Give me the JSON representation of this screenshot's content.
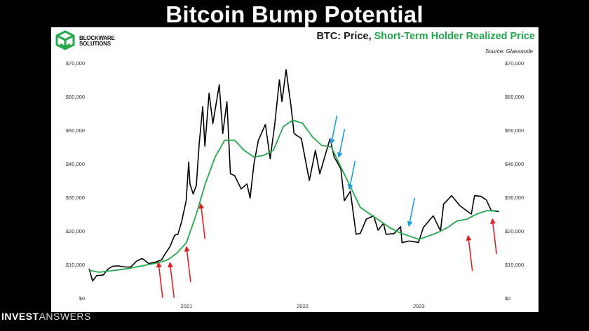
{
  "headline": "Bitcoin Bump Potential",
  "logo": {
    "line1": "BLOCKWARE",
    "line2": "SOLUTIONS",
    "color": "#22a84a"
  },
  "title": {
    "prefix": "BTC: Price, ",
    "highlight": "Short-Term Holder Realized Price"
  },
  "source": "Source: Glassnode",
  "footer": {
    "bold": "INVEST",
    "light": "ANSWERS"
  },
  "chart_data": {
    "type": "line",
    "title": "BTC: Price, Short-Term Holder Realized Price",
    "x_type": "date",
    "xlim": [
      "2020-03-01",
      "2023-09-15"
    ],
    "x_ticks": [
      {
        "date": "2021-01-01",
        "label": "2021"
      },
      {
        "date": "2022-01-01",
        "label": "2022"
      },
      {
        "date": "2023-01-01",
        "label": "2023"
      }
    ],
    "ylim": [
      0,
      70000
    ],
    "y_ticks": [
      0,
      10000,
      20000,
      30000,
      40000,
      50000,
      60000,
      70000
    ],
    "y_tick_labels": [
      "$0",
      "$10,000",
      "$20,000",
      "$30,000",
      "$40,000",
      "$50,000",
      "$60,000",
      "$70,000"
    ],
    "y_axis_both_sides": true,
    "grid": false,
    "series": [
      {
        "name": "Price",
        "color": "#000000",
        "points": [
          [
            "2020-03-01",
            8800
          ],
          [
            "2020-03-12",
            5100
          ],
          [
            "2020-03-25",
            6700
          ],
          [
            "2020-04-15",
            6900
          ],
          [
            "2020-04-30",
            8700
          ],
          [
            "2020-05-15",
            9500
          ],
          [
            "2020-06-01",
            9600
          ],
          [
            "2020-06-20",
            9300
          ],
          [
            "2020-07-10",
            9250
          ],
          [
            "2020-07-28",
            11000
          ],
          [
            "2020-08-15",
            11800
          ],
          [
            "2020-09-05",
            10300
          ],
          [
            "2020-09-25",
            10700
          ],
          [
            "2020-10-15",
            11400
          ],
          [
            "2020-10-25",
            13000
          ],
          [
            "2020-11-10",
            15300
          ],
          [
            "2020-11-25",
            18700
          ],
          [
            "2020-12-05",
            19000
          ],
          [
            "2020-12-17",
            22800
          ],
          [
            "2020-12-31",
            29000
          ],
          [
            "2021-01-08",
            40500
          ],
          [
            "2021-01-12",
            34000
          ],
          [
            "2021-01-22",
            31000
          ],
          [
            "2021-02-01",
            33500
          ],
          [
            "2021-02-10",
            46000
          ],
          [
            "2021-02-21",
            57000
          ],
          [
            "2021-02-28",
            45200
          ],
          [
            "2021-03-13",
            61000
          ],
          [
            "2021-03-25",
            52000
          ],
          [
            "2021-04-14",
            63500
          ],
          [
            "2021-04-25",
            49000
          ],
          [
            "2021-05-08",
            58500
          ],
          [
            "2021-05-19",
            37000
          ],
          [
            "2021-06-01",
            36500
          ],
          [
            "2021-06-22",
            32500
          ],
          [
            "2021-07-10",
            34000
          ],
          [
            "2021-07-20",
            29800
          ],
          [
            "2021-08-01",
            40000
          ],
          [
            "2021-08-15",
            47000
          ],
          [
            "2021-09-06",
            51700
          ],
          [
            "2021-09-21",
            41500
          ],
          [
            "2021-10-05",
            51500
          ],
          [
            "2021-10-20",
            65000
          ],
          [
            "2021-10-28",
            58500
          ],
          [
            "2021-11-10",
            68000
          ],
          [
            "2021-11-25",
            57500
          ],
          [
            "2021-12-05",
            49000
          ],
          [
            "2021-12-28",
            47500
          ],
          [
            "2022-01-05",
            43500
          ],
          [
            "2022-01-22",
            35000
          ],
          [
            "2022-02-10",
            44000
          ],
          [
            "2022-02-24",
            37000
          ],
          [
            "2022-03-28",
            47500
          ],
          [
            "2022-04-10",
            42000
          ],
          [
            "2022-05-01",
            38500
          ],
          [
            "2022-05-12",
            29000
          ],
          [
            "2022-05-31",
            31800
          ],
          [
            "2022-06-13",
            22500
          ],
          [
            "2022-06-18",
            19000
          ],
          [
            "2022-07-01",
            19300
          ],
          [
            "2022-07-20",
            23500
          ],
          [
            "2022-08-12",
            24500
          ],
          [
            "2022-08-26",
            20200
          ],
          [
            "2022-09-12",
            22300
          ],
          [
            "2022-09-20",
            19000
          ],
          [
            "2022-10-15",
            19200
          ],
          [
            "2022-11-05",
            21300
          ],
          [
            "2022-11-09",
            16500
          ],
          [
            "2022-12-01",
            17000
          ],
          [
            "2022-12-31",
            16600
          ],
          [
            "2023-01-15",
            21000
          ],
          [
            "2023-02-15",
            24500
          ],
          [
            "2023-03-10",
            20000
          ],
          [
            "2023-03-20",
            28000
          ],
          [
            "2023-04-14",
            30500
          ],
          [
            "2023-05-10",
            27500
          ],
          [
            "2023-06-15",
            25000
          ],
          [
            "2023-06-25",
            30500
          ],
          [
            "2023-07-15",
            30300
          ],
          [
            "2023-08-01",
            29200
          ],
          [
            "2023-08-17",
            26000
          ],
          [
            "2023-09-10",
            25800
          ]
        ]
      },
      {
        "name": "Short-Term Holder Realized Price",
        "color": "#22a84a",
        "points": [
          [
            "2020-03-01",
            8300
          ],
          [
            "2020-04-01",
            7700
          ],
          [
            "2020-05-15",
            8200
          ],
          [
            "2020-07-01",
            8800
          ],
          [
            "2020-08-15",
            9600
          ],
          [
            "2020-10-01",
            10500
          ],
          [
            "2020-11-01",
            11300
          ],
          [
            "2020-12-01",
            13300
          ],
          [
            "2021-01-01",
            16500
          ],
          [
            "2021-02-01",
            25000
          ],
          [
            "2021-03-01",
            34000
          ],
          [
            "2021-04-01",
            42000
          ],
          [
            "2021-05-01",
            47000
          ],
          [
            "2021-06-01",
            47000
          ],
          [
            "2021-07-01",
            44000
          ],
          [
            "2021-08-01",
            42000
          ],
          [
            "2021-09-01",
            42500
          ],
          [
            "2021-10-01",
            44000
          ],
          [
            "2021-11-01",
            51000
          ],
          [
            "2021-12-01",
            53000
          ],
          [
            "2022-01-01",
            52000
          ],
          [
            "2022-02-01",
            48000
          ],
          [
            "2022-03-01",
            45500
          ],
          [
            "2022-04-01",
            45000
          ],
          [
            "2022-05-01",
            39000
          ],
          [
            "2022-06-01",
            33000
          ],
          [
            "2022-07-01",
            27000
          ],
          [
            "2022-08-01",
            25000
          ],
          [
            "2022-09-01",
            23000
          ],
          [
            "2022-10-01",
            21000
          ],
          [
            "2022-11-01",
            19500
          ],
          [
            "2022-12-01",
            18500
          ],
          [
            "2023-01-01",
            17500
          ],
          [
            "2023-02-01",
            18500
          ],
          [
            "2023-03-01",
            19500
          ],
          [
            "2023-04-01",
            21000
          ],
          [
            "2023-05-01",
            23000
          ],
          [
            "2023-06-01",
            23500
          ],
          [
            "2023-07-01",
            25000
          ],
          [
            "2023-08-01",
            26000
          ],
          [
            "2023-09-01",
            26000
          ]
        ]
      }
    ],
    "arrows": [
      {
        "color": "#e02020",
        "direction": "up",
        "at": [
          "2020-10-05",
          10500
        ]
      },
      {
        "color": "#e02020",
        "direction": "up",
        "at": [
          "2020-11-10",
          10500
        ]
      },
      {
        "color": "#e02020",
        "direction": "up",
        "at": [
          "2021-01-01",
          15200
        ]
      },
      {
        "color": "#e02020",
        "direction": "up",
        "at": [
          "2021-02-15",
          28000
        ]
      },
      {
        "color": "#1e9be0",
        "direction": "down",
        "at": [
          "2022-04-01",
          46000
        ]
      },
      {
        "color": "#1e9be0",
        "direction": "down",
        "at": [
          "2022-04-25",
          42000
        ]
      },
      {
        "color": "#1e9be0",
        "direction": "down",
        "at": [
          "2022-05-28",
          32500
        ]
      },
      {
        "color": "#1e9be0",
        "direction": "down",
        "at": [
          "2022-12-01",
          21500
        ]
      },
      {
        "color": "#e02020",
        "direction": "up",
        "at": [
          "2023-06-05",
          18500
        ]
      },
      {
        "color": "#e02020",
        "direction": "up",
        "at": [
          "2023-08-20",
          23500
        ]
      }
    ]
  }
}
